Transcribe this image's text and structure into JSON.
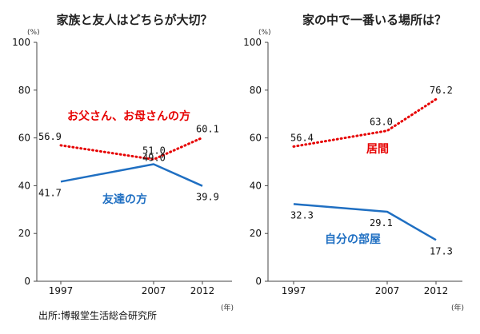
{
  "source": "出所:博報堂生活総合研究所",
  "y_unit": "(%)",
  "x_unit": "(年)",
  "colors": {
    "red": "#e60000",
    "blue": "#1f6fc2"
  },
  "chart_data": [
    {
      "type": "line",
      "title": "家族と友人はどちらが大切？",
      "x": [
        1997,
        2007,
        2012
      ],
      "ylim": [
        0,
        100
      ],
      "yticks": [
        0,
        20,
        40,
        60,
        80,
        100
      ],
      "grid": false,
      "series": [
        {
          "name": "お父さん、お母さんの方",
          "values": [
            56.9,
            51.0,
            60.1
          ],
          "labels": [
            "56.9",
            "51.0",
            "60.1"
          ],
          "color": "#e60000",
          "style": "dotted"
        },
        {
          "name": "友達の方",
          "values": [
            41.7,
            49.0,
            39.9
          ],
          "labels": [
            "41.7",
            "49.0",
            "39.9"
          ],
          "color": "#1f6fc2",
          "style": "solid"
        }
      ]
    },
    {
      "type": "line",
      "title": "家の中で一番いる場所は？",
      "x": [
        1997,
        2007,
        2012
      ],
      "ylim": [
        0,
        100
      ],
      "yticks": [
        0,
        20,
        40,
        60,
        80,
        100
      ],
      "grid": false,
      "series": [
        {
          "name": "居間",
          "values": [
            56.4,
            63.0,
            76.2
          ],
          "labels": [
            "56.4",
            "63.0",
            "76.2"
          ],
          "color": "#e60000",
          "style": "dotted"
        },
        {
          "name": "自分の部屋",
          "values": [
            32.3,
            29.1,
            17.3
          ],
          "labels": [
            "32.3",
            "29.1",
            "17.3"
          ],
          "color": "#1f6fc2",
          "style": "solid"
        }
      ]
    }
  ]
}
